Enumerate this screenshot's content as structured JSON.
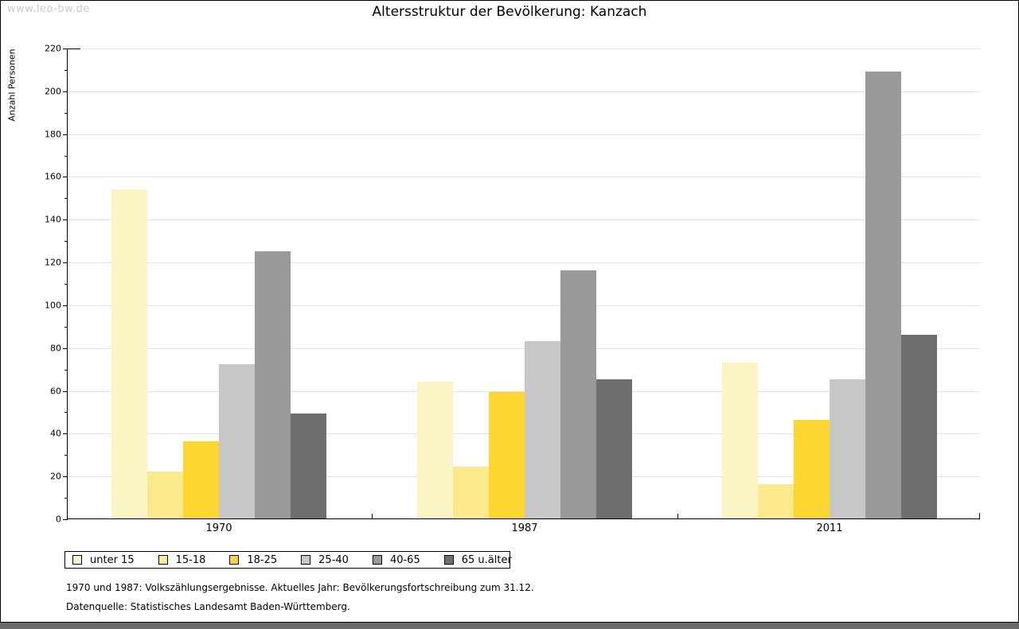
{
  "watermark": "www.leo-bw.de",
  "title": "Altersstruktur der Bevölkerung: Kanzach",
  "chart_data": {
    "type": "bar",
    "title": "Altersstruktur der Bevölkerung: Kanzach",
    "xlabel": "",
    "ylabel": "Anzahl Personen",
    "ylim": [
      0,
      220
    ],
    "ytick_step": 20,
    "minor_tick_step": 10,
    "grid": true,
    "legend_position": "bottom",
    "categories": [
      "1970",
      "1987",
      "2011"
    ],
    "series": [
      {
        "name": "unter 15",
        "color": "#FBF5C5",
        "values": [
          154,
          64,
          73
        ]
      },
      {
        "name": "15-18",
        "color": "#FCE98C",
        "values": [
          22,
          24,
          16
        ]
      },
      {
        "name": "18-25",
        "color": "#FCD62F",
        "values": [
          36,
          59,
          46
        ]
      },
      {
        "name": "25-40",
        "color": "#C7C7C7",
        "values": [
          72,
          83,
          65
        ]
      },
      {
        "name": "40-65",
        "color": "#999999",
        "values": [
          125,
          116,
          209
        ]
      },
      {
        "name": "65 u.älter",
        "color": "#6F6F6F",
        "values": [
          49,
          65,
          86
        ]
      }
    ]
  },
  "footnotes": [
    "1970 und 1987: Volkszählungsergebnisse. Aktuelles Jahr: Bevölkerungsfortschreibung zum 31.12.",
    "Datenquelle: Statistisches Landesamt Baden-Württemberg."
  ]
}
